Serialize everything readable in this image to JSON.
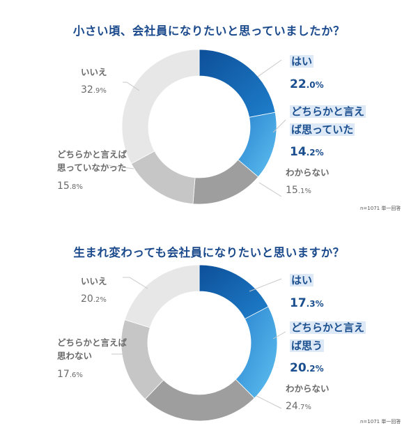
{
  "chart_data": [
    {
      "type": "pie",
      "title": "小さい頃、会社員になりたいと思っていましたか？",
      "note": "n=1071 単一回答",
      "slices": [
        {
          "label": "はい",
          "int": "22",
          "dec": ".0%",
          "value": 22.0,
          "color": "#1466b0",
          "highlight": true
        },
        {
          "label": "どちらかと言えば思っていた",
          "int": "14",
          "dec": ".2%",
          "value": 14.2,
          "color": "#3c9ddf",
          "highlight": true
        },
        {
          "label": "わからない",
          "int": "15",
          "dec": ".1%",
          "value": 15.1,
          "color": "#9e9e9e",
          "highlight": false
        },
        {
          "label": "どちらかと言えば思っていなかった",
          "int": "15",
          "dec": ".8%",
          "value": 15.8,
          "color": "#c6c6c6",
          "highlight": false
        },
        {
          "label": "いいえ",
          "int": "32",
          "dec": ".9%",
          "value": 32.9,
          "color": "#e7e7e7",
          "highlight": false
        }
      ]
    },
    {
      "type": "pie",
      "title": "生まれ変わっても会社員になりたいと思いますか？",
      "note": "n=1071 単一回答",
      "slices": [
        {
          "label": "はい",
          "int": "17",
          "dec": ".3%",
          "value": 17.3,
          "color": "#1466b0",
          "highlight": true
        },
        {
          "label": "どちらかと言えば思う",
          "int": "20",
          "dec": ".2%",
          "value": 20.2,
          "color": "#3c9ddf",
          "highlight": true
        },
        {
          "label": "わからない",
          "int": "24",
          "dec": ".7%",
          "value": 24.7,
          "color": "#9e9e9e",
          "highlight": false
        },
        {
          "label": "どちらかと言えば思わない",
          "int": "17",
          "dec": ".6%",
          "value": 17.6,
          "color": "#c6c6c6",
          "highlight": false
        },
        {
          "label": "いいえ",
          "int": "20",
          "dec": ".2%",
          "value": 20.2,
          "color": "#e7e7e7",
          "highlight": false
        }
      ]
    }
  ]
}
